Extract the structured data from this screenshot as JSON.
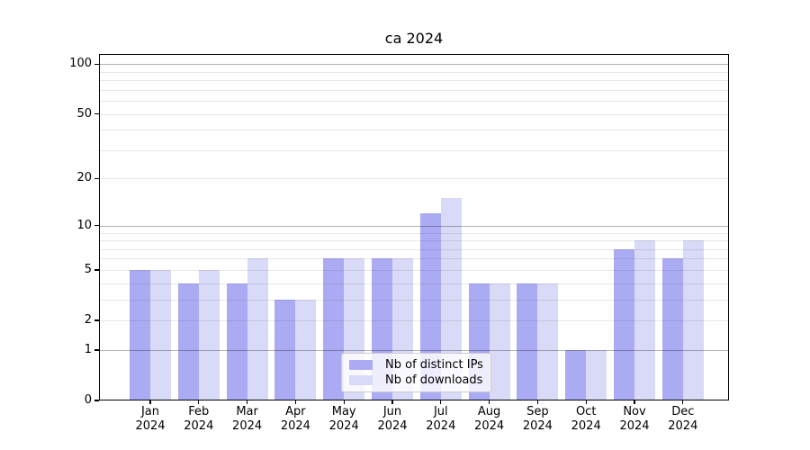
{
  "title": "ca 2024",
  "chart_data": {
    "type": "bar",
    "title": "ca 2024",
    "categories": [
      "Jan",
      "Feb",
      "Mar",
      "Apr",
      "May",
      "Jun",
      "Jul",
      "Aug",
      "Sep",
      "Oct",
      "Nov",
      "Dec"
    ],
    "category_year": "2024",
    "series": [
      {
        "name": "Nb of distinct IPs",
        "color": "#ababf3",
        "values": [
          5,
          4,
          4,
          3,
          6,
          6,
          12,
          4,
          4,
          1,
          7,
          6
        ]
      },
      {
        "name": "Nb of downloads",
        "color": "#d9d9f8",
        "values": [
          5,
          5,
          6,
          3,
          6,
          6,
          15,
          4,
          4,
          1,
          8,
          8
        ]
      }
    ],
    "yscale": "log1p",
    "ylim": [
      0,
      115
    ],
    "yticks": [
      0,
      1,
      2,
      5,
      10,
      20,
      50,
      100
    ],
    "major_gridlines": [
      1,
      10,
      100
    ],
    "minor_gridlines": [
      2,
      3,
      4,
      5,
      6,
      7,
      8,
      9,
      20,
      30,
      40,
      50,
      60,
      70,
      80,
      90
    ],
    "grid": true,
    "legend_position": "lower center",
    "xlabel": "",
    "ylabel": ""
  },
  "colors": {
    "major_grid": "rgba(0,0,0,0.30)",
    "minor_grid": "rgba(0,0,0,0.09)",
    "axis": "#000000",
    "bar_distinct_ips": "#ababf3",
    "bar_downloads": "#d9d9f8",
    "legend_border": "#cccccc"
  }
}
